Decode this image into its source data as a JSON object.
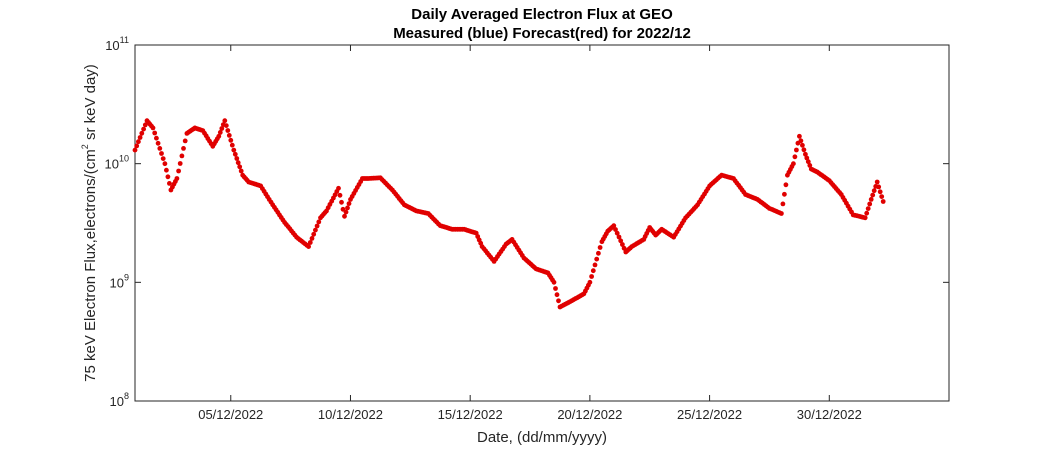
{
  "chart_data": {
    "type": "scatter",
    "title": "Daily Averaged Electron Flux at GEO",
    "subtitle": "Measured (blue) Forecast(red) for 2022/12",
    "xlabel": "Date, (dd/mm/yyyy)",
    "ylabel": "75 keV Electron Flux,electrons/(cm² sr keV day)",
    "ylabel_parts": [
      "75 keV Electron Flux,electrons/(cm",
      "2",
      " sr keV day)"
    ],
    "y_scale": "log",
    "ylim": [
      100000000.0,
      100000000000.0
    ],
    "xlim": [
      "2022-12-01",
      "2023-01-04"
    ],
    "grid": false,
    "point_color": "#e00000",
    "x_ticks": [
      {
        "value": "2022-12-05",
        "label": "05/12/2022"
      },
      {
        "value": "2022-12-10",
        "label": "10/12/2022"
      },
      {
        "value": "2022-12-15",
        "label": "15/12/2022"
      },
      {
        "value": "2022-12-20",
        "label": "20/12/2022"
      },
      {
        "value": "2022-12-25",
        "label": "25/12/2022"
      },
      {
        "value": "2022-12-30",
        "label": "30/12/2022"
      }
    ],
    "y_ticks": [
      {
        "value": 100000000.0,
        "base": "10",
        "exp": "8"
      },
      {
        "value": 1000000000.0,
        "base": "10",
        "exp": "9"
      },
      {
        "value": 10000000000.0,
        "base": "10",
        "exp": "10"
      },
      {
        "value": 100000000000.0,
        "base": "10",
        "exp": "11"
      }
    ],
    "series": [
      {
        "color": "#e00000",
        "x": [
          "2022-12-01T00:00",
          "2022-12-01T12:00",
          "2022-12-01T18:00",
          "2022-12-02T06:00",
          "2022-12-02T12:00",
          "2022-12-02T18:00",
          "2022-12-03T04:00",
          "2022-12-03T12:00",
          "2022-12-03T20:00",
          "2022-12-04T06:00",
          "2022-12-04T12:00",
          "2022-12-04T18:00",
          "2022-12-05T03:00",
          "2022-12-05T12:00",
          "2022-12-05T18:00",
          "2022-12-06T06:00",
          "2022-12-06T18:00",
          "2022-12-07T06:00",
          "2022-12-07T18:00",
          "2022-12-08T06:00",
          "2022-12-08T18:00",
          "2022-12-09T00:00",
          "2022-12-09T12:00",
          "2022-12-09T18:00",
          "2022-12-10T00:00",
          "2022-12-10T12:00",
          "2022-12-10T18:00",
          "2022-12-11T06:00",
          "2022-12-11T18:00",
          "2022-12-12T06:00",
          "2022-12-12T18:00",
          "2022-12-13T06:00",
          "2022-12-13T18:00",
          "2022-12-14T06:00",
          "2022-12-14T18:00",
          "2022-12-15T06:00",
          "2022-12-15T12:00",
          "2022-12-16T00:00",
          "2022-12-16T12:00",
          "2022-12-16T18:00",
          "2022-12-17T06:00",
          "2022-12-17T18:00",
          "2022-12-18T06:00",
          "2022-12-18T12:00",
          "2022-12-18T18:00",
          "2022-12-19T06:00",
          "2022-12-19T18:00",
          "2022-12-20T00:00",
          "2022-12-20T12:00",
          "2022-12-20T18:00",
          "2022-12-21T00:00",
          "2022-12-21T12:00",
          "2022-12-21T18:00",
          "2022-12-22T06:00",
          "2022-12-22T12:00",
          "2022-12-22T18:00",
          "2022-12-23T00:00",
          "2022-12-23T12:00",
          "2022-12-24T00:00",
          "2022-12-24T12:00",
          "2022-12-25T00:00",
          "2022-12-25T12:00",
          "2022-12-26T00:00",
          "2022-12-26T12:00",
          "2022-12-27T00:00",
          "2022-12-27T12:00",
          "2022-12-28T00:00",
          "2022-12-28T06:00",
          "2022-12-28T12:00",
          "2022-12-28T18:00",
          "2022-12-29T00:00",
          "2022-12-29T06:00",
          "2022-12-29T12:00",
          "2022-12-30T00:00",
          "2022-12-30T12:00",
          "2022-12-31T00:00",
          "2022-12-31T12:00",
          "2022-12-31T18:00",
          "2023-01-01T00:00",
          "2023-01-01T06:00"
        ],
        "y": [
          13000000000.0,
          23000000000.0,
          20000000000.0,
          10000000000.0,
          6000000000.0,
          7500000000.0,
          18000000000.0,
          20000000000.0,
          19000000000.0,
          14000000000.0,
          17000000000.0,
          23000000000.0,
          13000000000.0,
          8000000000.0,
          7000000000.0,
          6500000000.0,
          4500000000.0,
          3200000000.0,
          2400000000.0,
          2000000000.0,
          3500000000.0,
          4000000000.0,
          6200000000.0,
          3600000000.0,
          5000000000.0,
          7500000000.0,
          7500000000.0,
          7600000000.0,
          6000000000.0,
          4500000000.0,
          4000000000.0,
          3800000000.0,
          3000000000.0,
          2800000000.0,
          2800000000.0,
          2600000000.0,
          2000000000.0,
          1500000000.0,
          2100000000.0,
          2300000000.0,
          1600000000.0,
          1300000000.0,
          1200000000.0,
          1000000000.0,
          620000000.0,
          700000000.0,
          800000000.0,
          1000000000.0,
          2200000000.0,
          2700000000.0,
          3000000000.0,
          1800000000.0,
          2000000000.0,
          2300000000.0,
          2900000000.0,
          2500000000.0,
          2800000000.0,
          2400000000.0,
          3500000000.0,
          4500000000.0,
          6500000000.0,
          8000000000.0,
          7500000000.0,
          5500000000.0,
          5000000000.0,
          4200000000.0,
          3800000000.0,
          8000000000.0,
          10000000000.0,
          17000000000.0,
          12000000000.0,
          9000000000.0,
          8500000000.0,
          7200000000.0,
          5500000000.0,
          3700000000.0,
          3500000000.0,
          5000000000.0,
          7000000000.0,
          4800000000.0
        ]
      }
    ]
  }
}
